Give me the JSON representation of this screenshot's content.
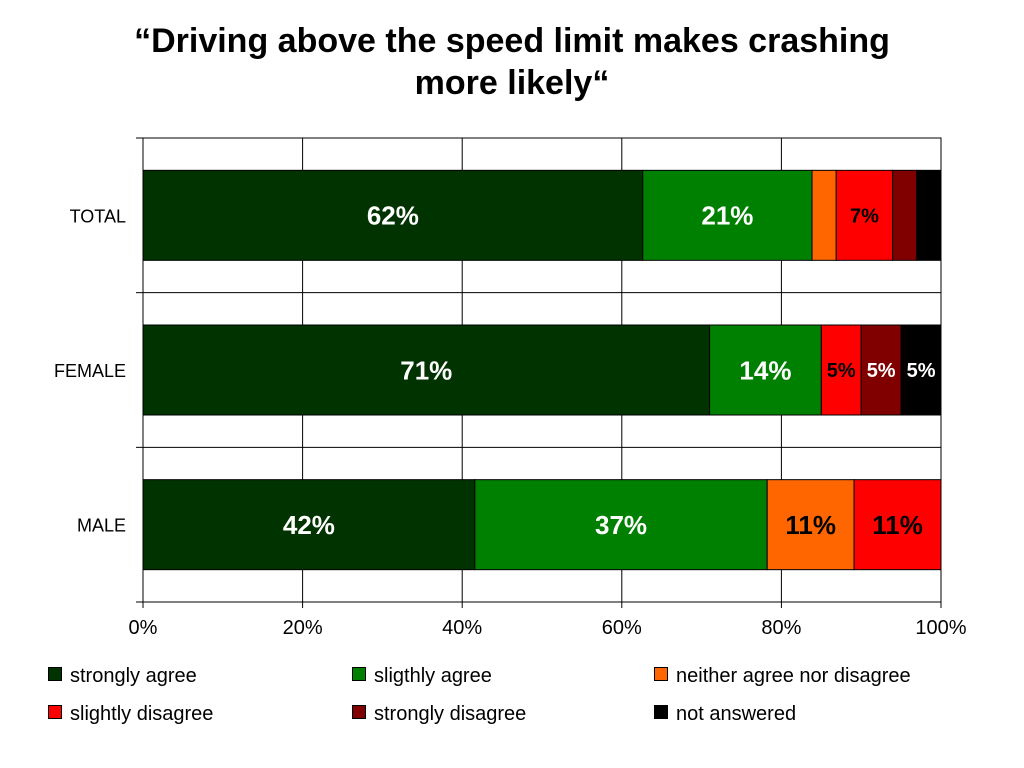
{
  "chart_data": {
    "type": "bar",
    "orientation": "horizontal",
    "stacked": true,
    "title_lines": [
      "“Driving above the speed limit makes crashing",
      "more likely“"
    ],
    "categories": [
      "TOTAL",
      "FEMALE",
      "MALE"
    ],
    "xlim": [
      0,
      100
    ],
    "x_ticks": [
      "0%",
      "20%",
      "40%",
      "60%",
      "80%",
      "100%"
    ],
    "grid": true,
    "legend_position": "bottom",
    "series": [
      {
        "name": "strongly agree",
        "color": "#003300",
        "label_color": "#ffffff",
        "values": [
          62,
          71,
          42
        ],
        "labels": [
          "62%",
          "71%",
          "42%"
        ]
      },
      {
        "name": "sligthly agree",
        "color": "#008000",
        "label_color": "#ffffff",
        "values": [
          21,
          14,
          37
        ],
        "labels": [
          "21%",
          "14%",
          "37%"
        ]
      },
      {
        "name": "neither agree nor disagree",
        "color": "#ff6600",
        "label_color": "#000000",
        "values": [
          3,
          0,
          11
        ],
        "labels": [
          "",
          "",
          "11%"
        ]
      },
      {
        "name": "slightly disagree",
        "color": "#ff0000",
        "label_color": "#000000",
        "values": [
          7,
          5,
          11
        ],
        "labels": [
          "7%",
          "5%",
          "11%"
        ]
      },
      {
        "name": "strongly disagree",
        "color": "#800000",
        "label_color": "#ffffff",
        "values": [
          3,
          5,
          0
        ],
        "labels": [
          "",
          "5%",
          ""
        ]
      },
      {
        "name": "not answered",
        "color": "#000000",
        "label_color": "#ffffff",
        "values": [
          3,
          5,
          0
        ],
        "labels": [
          "",
          "5%",
          ""
        ]
      }
    ]
  }
}
